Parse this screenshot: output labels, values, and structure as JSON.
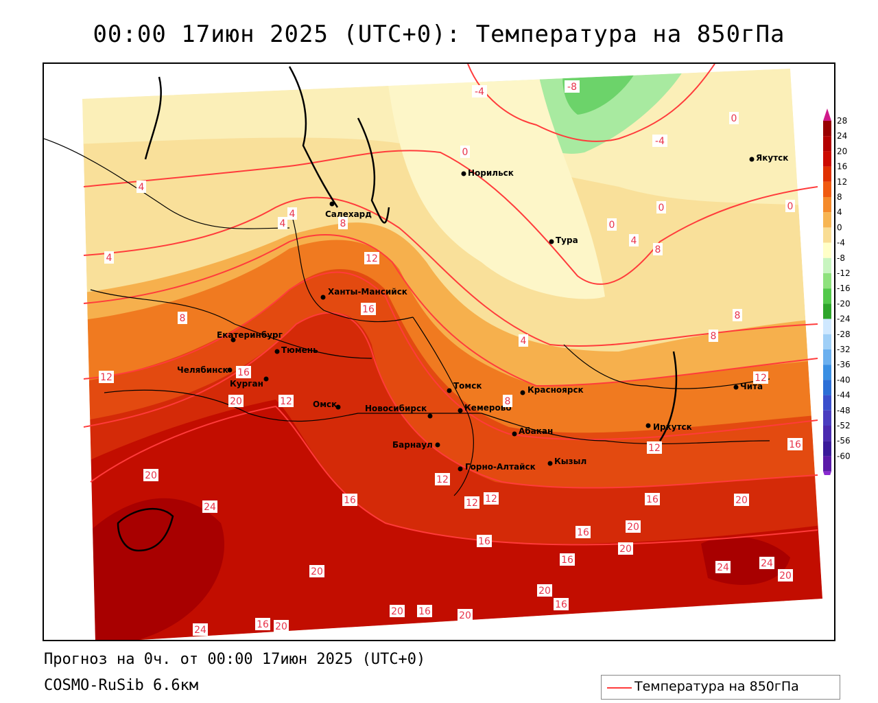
{
  "title": "00:00 17июн 2025 (UTC+0): Температура на 850гПа",
  "footer": {
    "forecast": "Прогноз на 0ч. от 00:00 17июн 2025 (UTC+0)",
    "model": "COSMO-RuSib 6.6км"
  },
  "legend": {
    "label": "Температура на 850гПа",
    "line_color": "#ff3b3b"
  },
  "color_scale": {
    "labels": [
      "28",
      "24",
      "20",
      "16",
      "12",
      "8",
      "4",
      "0",
      "-4",
      "-8",
      "-12",
      "-16",
      "-20",
      "-24",
      "-28",
      "-32",
      "-36",
      "-40",
      "-44",
      "-48",
      "-52",
      "-56",
      "-60"
    ],
    "colors": [
      "#990000",
      "#b30000",
      "#cc0a00",
      "#e03000",
      "#f05a10",
      "#f58a2a",
      "#f7b552",
      "#f9dd94",
      "#ffffc8",
      "#c8f5c0",
      "#8ee27d",
      "#52c94a",
      "#2da52a",
      "#cfe8ff",
      "#9fcff7",
      "#6bb0ef",
      "#3a8fe3",
      "#2c6fd6",
      "#3a4fcc",
      "#4a3dc0",
      "#4a2ab0",
      "#3a1a9a",
      "#5a1aa8"
    ]
  },
  "cities": [
    {
      "name": "Салехард"
    },
    {
      "name": "Норильск"
    },
    {
      "name": "Якутск"
    },
    {
      "name": "Тура"
    },
    {
      "name": "Ханты-Мансийск"
    },
    {
      "name": "Екатеринбург"
    },
    {
      "name": "Тюмень"
    },
    {
      "name": "Челябинск"
    },
    {
      "name": "Курган"
    },
    {
      "name": "Омск"
    },
    {
      "name": "Новосибирск"
    },
    {
      "name": "Томск"
    },
    {
      "name": "Кемерово"
    },
    {
      "name": "Красноярск"
    },
    {
      "name": "Абакан"
    },
    {
      "name": "Барнаул"
    },
    {
      "name": "Горно-Алтайск"
    },
    {
      "name": "Кызыл"
    },
    {
      "name": "Иркутск"
    },
    {
      "name": "Чита"
    }
  ],
  "contour_labels": [
    "-4",
    "-8",
    "-4",
    "0",
    "0",
    "0",
    "0",
    "4",
    "4",
    "4",
    "8",
    "0",
    "4",
    "8",
    "12",
    "16",
    "8",
    "4",
    "8",
    "8",
    "12",
    "12",
    "16",
    "20",
    "12",
    "8",
    "12",
    "12",
    "12",
    "16",
    "20",
    "24",
    "16",
    "16",
    "16",
    "20",
    "16",
    "16",
    "20",
    "20",
    "24",
    "24",
    "20",
    "20",
    "20",
    "16",
    "20",
    "20",
    "16",
    "24",
    "16",
    "20",
    "4",
    "12"
  ]
}
